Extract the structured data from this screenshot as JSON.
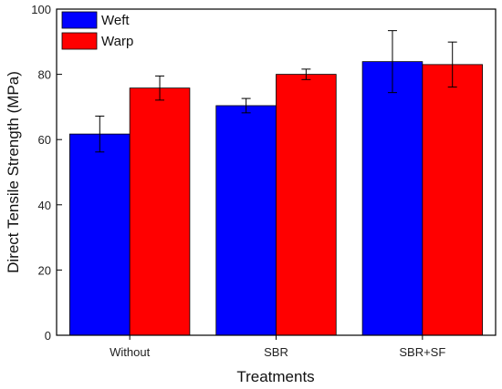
{
  "chart_data": {
    "type": "bar",
    "title": "",
    "xlabel": "Treatments",
    "ylabel": "Direct Tensile Strength (MPa)",
    "categories": [
      "Without",
      "SBR",
      "SBR+SF"
    ],
    "ylim": [
      0,
      100
    ],
    "yticks": [
      "0",
      "20",
      "40",
      "60",
      "80",
      "100"
    ],
    "yticks_values": [
      0,
      20,
      40,
      60,
      80,
      100
    ],
    "grid": false,
    "legend_position": "top-left",
    "series": [
      {
        "name": "Weft",
        "color": "#0000ff",
        "values": [
          61.7,
          70.4,
          83.9
        ],
        "error": [
          5.5,
          2.2,
          9.5
        ]
      },
      {
        "name": "Warp",
        "color": "#ff0000",
        "values": [
          75.8,
          80.0,
          83.0
        ],
        "error": [
          3.7,
          1.6,
          6.9
        ]
      }
    ]
  }
}
